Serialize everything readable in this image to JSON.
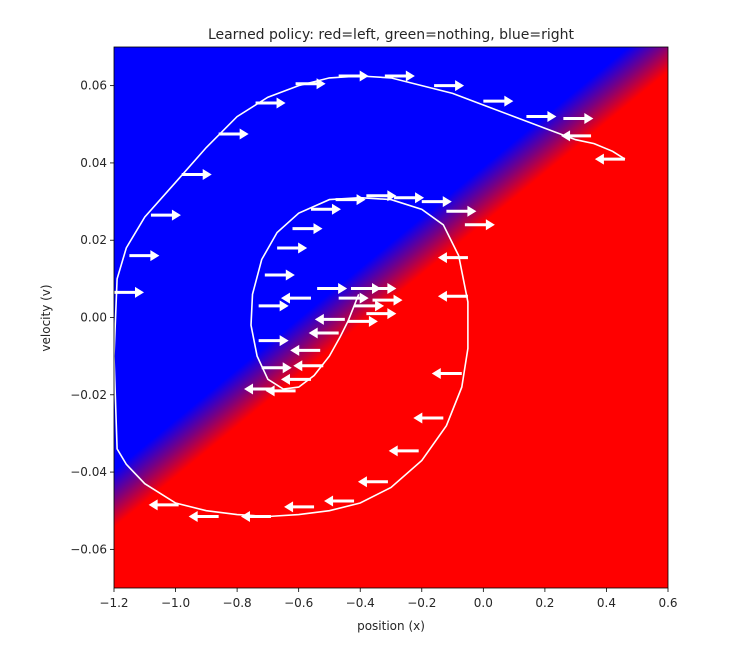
{
  "chart_data": {
    "type": "heatmap",
    "title": "Learned policy: red=left, green=nothing, blue=right",
    "xlabel": "position (x)",
    "ylabel": "velocity (v)",
    "xlim": [
      -1.2,
      0.6
    ],
    "ylim": [
      -0.07,
      0.07
    ],
    "x_ticks": [
      -1.2,
      -1.0,
      -0.8,
      -0.6,
      -0.4,
      -0.2,
      0.0,
      0.2,
      0.4,
      0.6
    ],
    "x_tick_labels": [
      "−1.2",
      "−1.0",
      "−0.8",
      "−0.6",
      "−0.4",
      "−0.2",
      "0.0",
      "0.2",
      "0.4",
      "0.6"
    ],
    "y_ticks": [
      -0.06,
      -0.04,
      -0.02,
      0.0,
      0.02,
      0.04,
      0.06
    ],
    "y_tick_labels": [
      "−0.06",
      "−0.04",
      "−0.02",
      "0.00",
      "0.02",
      "0.04",
      "0.06"
    ],
    "grid": false,
    "colors": {
      "left_action": "#ff0000",
      "right_action": "#0000ff",
      "trajectory": "#ffffff",
      "arrows": "#ffffff"
    },
    "policy_boundary": {
      "description_line": [
        [
          -1.2,
          -0.047
        ],
        [
          0.6,
          0.071
        ]
      ]
    },
    "trajectory": [
      [
        -0.405,
        0.006
      ],
      [
        -0.42,
        0.003
      ],
      [
        -0.44,
        -0.001
      ],
      [
        -0.465,
        -0.005
      ],
      [
        -0.5,
        -0.01
      ],
      [
        -0.55,
        -0.015
      ],
      [
        -0.6,
        -0.018
      ],
      [
        -0.65,
        -0.0185
      ],
      [
        -0.7,
        -0.016
      ],
      [
        -0.735,
        -0.01
      ],
      [
        -0.755,
        -0.002
      ],
      [
        -0.75,
        0.006
      ],
      [
        -0.72,
        0.015
      ],
      [
        -0.67,
        0.022
      ],
      [
        -0.6,
        0.027
      ],
      [
        -0.5,
        0.0305
      ],
      [
        -0.4,
        0.031
      ],
      [
        -0.3,
        0.0305
      ],
      [
        -0.2,
        0.028
      ],
      [
        -0.13,
        0.024
      ],
      [
        -0.08,
        0.016
      ],
      [
        -0.05,
        0.004
      ],
      [
        -0.05,
        -0.008
      ],
      [
        -0.07,
        -0.018
      ],
      [
        -0.12,
        -0.028
      ],
      [
        -0.2,
        -0.037
      ],
      [
        -0.3,
        -0.044
      ],
      [
        -0.4,
        -0.048
      ],
      [
        -0.5,
        -0.05
      ],
      [
        -0.6,
        -0.051
      ],
      [
        -0.7,
        -0.0515
      ],
      [
        -0.8,
        -0.051
      ],
      [
        -0.9,
        -0.05
      ],
      [
        -1.0,
        -0.048
      ],
      [
        -1.1,
        -0.043
      ],
      [
        -1.16,
        -0.038
      ],
      [
        -1.19,
        -0.034
      ],
      [
        -1.2,
        -0.01
      ],
      [
        -1.19,
        0.01
      ],
      [
        -1.16,
        0.018
      ],
      [
        -1.1,
        0.026
      ],
      [
        -1.0,
        0.035
      ],
      [
        -0.9,
        0.044
      ],
      [
        -0.8,
        0.052
      ],
      [
        -0.7,
        0.057
      ],
      [
        -0.6,
        0.06
      ],
      [
        -0.5,
        0.062
      ],
      [
        -0.4,
        0.0625
      ],
      [
        -0.3,
        0.062
      ],
      [
        -0.2,
        0.06
      ],
      [
        -0.1,
        0.058
      ],
      [
        0.0,
        0.055
      ],
      [
        0.1,
        0.052
      ],
      [
        0.2,
        0.049
      ],
      [
        0.3,
        0.046
      ],
      [
        0.36,
        0.045
      ],
      [
        0.42,
        0.043
      ],
      [
        0.46,
        0.041
      ]
    ],
    "arrows_right": [
      [
        -1.2,
        0.0065
      ],
      [
        -1.15,
        0.016
      ],
      [
        -1.08,
        0.0265
      ],
      [
        -0.98,
        0.037
      ],
      [
        -0.86,
        0.0475
      ],
      [
        -0.74,
        0.0555
      ],
      [
        -0.61,
        0.0605
      ],
      [
        -0.47,
        0.0625
      ],
      [
        -0.32,
        0.0625
      ],
      [
        -0.16,
        0.06
      ],
      [
        0.0,
        0.056
      ],
      [
        0.14,
        0.052
      ],
      [
        0.26,
        0.0515
      ],
      [
        -0.72,
        -0.013
      ],
      [
        -0.73,
        -0.006
      ],
      [
        -0.73,
        0.003
      ],
      [
        -0.71,
        0.011
      ],
      [
        -0.67,
        0.018
      ],
      [
        -0.62,
        0.023
      ],
      [
        -0.56,
        0.028
      ],
      [
        -0.48,
        0.0305
      ],
      [
        -0.38,
        0.0315
      ],
      [
        -0.29,
        0.031
      ],
      [
        -0.2,
        0.03
      ],
      [
        -0.12,
        0.0275
      ],
      [
        -0.06,
        0.024
      ],
      [
        -0.54,
        0.0075
      ],
      [
        -0.47,
        0.005
      ],
      [
        -0.42,
        0.003
      ],
      [
        -0.38,
        0.001
      ],
      [
        -0.43,
        0.0075
      ],
      [
        -0.38,
        0.0075
      ],
      [
        -0.36,
        0.0045
      ],
      [
        -0.44,
        -0.001
      ]
    ],
    "arrows_left": [
      [
        0.46,
        0.041
      ],
      [
        0.35,
        0.047
      ],
      [
        -0.05,
        0.0155
      ],
      [
        -0.05,
        0.0055
      ],
      [
        -0.07,
        -0.0145
      ],
      [
        -0.13,
        -0.026
      ],
      [
        -0.21,
        -0.0345
      ],
      [
        -0.31,
        -0.0425
      ],
      [
        -0.42,
        -0.0475
      ],
      [
        -0.55,
        -0.049
      ],
      [
        -0.69,
        -0.0515
      ],
      [
        -0.86,
        -0.0515
      ],
      [
        -0.99,
        -0.0485
      ],
      [
        -0.52,
        -0.0125
      ],
      [
        -0.53,
        -0.0085
      ],
      [
        -0.56,
        -0.016
      ],
      [
        -0.61,
        -0.019
      ],
      [
        -0.68,
        -0.0185
      ],
      [
        -0.47,
        -0.004
      ],
      [
        -0.45,
        -0.0005
      ],
      [
        -0.56,
        0.005
      ]
    ]
  }
}
